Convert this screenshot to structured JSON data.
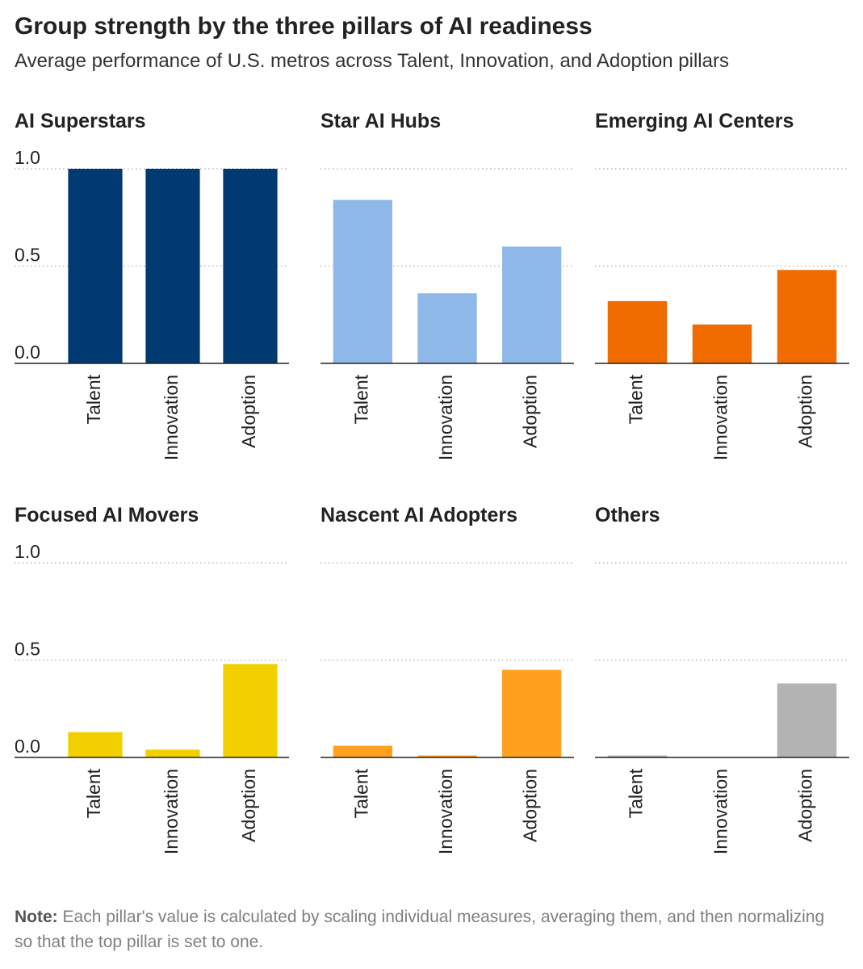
{
  "title": "Group strength by the three pillars of AI readiness",
  "subtitle": "Average performance of U.S. metros across Talent, Innovation, and Adoption pillars",
  "note": {
    "label": "Note:",
    "text": "Each pillar's value is calculated by scaling individual measures, averaging them, and then normalizing so that the top pillar is set to one."
  },
  "chart_data": [
    {
      "type": "bar",
      "title": "AI Superstars",
      "categories": [
        "Talent",
        "Innovation",
        "Adoption"
      ],
      "values": [
        1.0,
        1.0,
        1.0
      ],
      "color": "#003a70",
      "ylim": [
        0,
        1
      ],
      "yticks": [
        "0.0",
        "0.5",
        "1.0"
      ],
      "show_y_labels": true,
      "grid": "dotted"
    },
    {
      "type": "bar",
      "title": "Star AI Hubs",
      "categories": [
        "Talent",
        "Innovation",
        "Adoption"
      ],
      "values": [
        0.84,
        0.36,
        0.6
      ],
      "color": "#8db8e8",
      "ylim": [
        0,
        1
      ],
      "show_y_labels": false,
      "grid": "dotted"
    },
    {
      "type": "bar",
      "title": "Emerging AI Centers",
      "categories": [
        "Talent",
        "Innovation",
        "Adoption"
      ],
      "values": [
        0.32,
        0.2,
        0.48
      ],
      "color": "#f06c00",
      "ylim": [
        0,
        1
      ],
      "show_y_labels": false,
      "grid": "dotted"
    },
    {
      "type": "bar",
      "title": "Focused AI Movers",
      "categories": [
        "Talent",
        "Innovation",
        "Adoption"
      ],
      "values": [
        0.13,
        0.04,
        0.48
      ],
      "color": "#f2d000",
      "ylim": [
        0,
        1
      ],
      "yticks": [
        "0.0",
        "0.5",
        "1.0"
      ],
      "show_y_labels": true,
      "grid": "dotted"
    },
    {
      "type": "bar",
      "title": "Nascent AI Adopters",
      "categories": [
        "Talent",
        "Innovation",
        "Adoption"
      ],
      "values": [
        0.06,
        0.01,
        0.45
      ],
      "color": "#ffa01e",
      "ylim": [
        0,
        1
      ],
      "show_y_labels": false,
      "grid": "dotted"
    },
    {
      "type": "bar",
      "title": "Others",
      "categories": [
        "Talent",
        "Innovation",
        "Adoption"
      ],
      "values": [
        0.01,
        0.0,
        0.38
      ],
      "color": "#b3b3b3",
      "ylim": [
        0,
        1
      ],
      "show_y_labels": false,
      "grid": "dotted"
    }
  ]
}
